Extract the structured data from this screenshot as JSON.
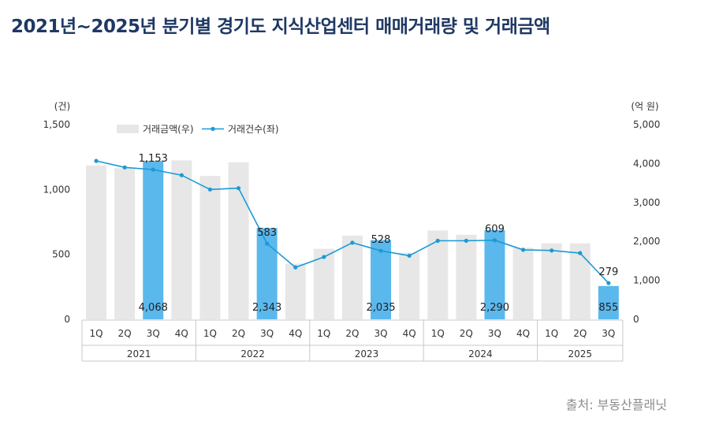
{
  "title": "2021년~2025년 분기별 경기도 지식산업센터 매매거래량 및 거래금액",
  "source": "출처: 부동산플래닛",
  "colors": {
    "title": "#1f3864",
    "bar_default": "#e7e7e7",
    "bar_highlight": "#5bb8ec",
    "line": "#1a9ad6",
    "axis_text": "#333333",
    "grid_border": "#c8c8c8"
  },
  "chart_data": {
    "type": "bar+line",
    "categories": [
      "1Q",
      "2Q",
      "3Q",
      "4Q",
      "1Q",
      "2Q",
      "3Q",
      "4Q",
      "1Q",
      "2Q",
      "3Q",
      "4Q",
      "1Q",
      "2Q",
      "3Q",
      "4Q",
      "1Q",
      "2Q",
      "3Q"
    ],
    "years": [
      {
        "label": "2021",
        "span": 4
      },
      {
        "label": "2022",
        "span": 4
      },
      {
        "label": "2023",
        "span": 4
      },
      {
        "label": "2024",
        "span": 4
      },
      {
        "label": "2025",
        "span": 3
      }
    ],
    "legend": {
      "bar": "거래금액(우)",
      "line": "거래건수(좌)"
    },
    "left_axis": {
      "unit_label": "(건)",
      "range": [
        0,
        1500
      ],
      "ticks": [
        "0",
        "500",
        "1,000",
        "1,500"
      ],
      "tick_values": [
        0,
        500,
        1000,
        1500
      ]
    },
    "right_axis": {
      "unit_label": "(억 원)",
      "range": [
        0,
        5000
      ],
      "ticks": [
        "0",
        "1,000",
        "2,000",
        "3,000",
        "4,000",
        "5,000"
      ],
      "tick_values": [
        0,
        1000,
        2000,
        3000,
        4000,
        5000
      ]
    },
    "series": [
      {
        "name": "거래금액(우)",
        "type": "bar",
        "axis": "right",
        "values": [
          3950,
          3880,
          4068,
          4080,
          3680,
          4030,
          2343,
          1430,
          1810,
          2150,
          2035,
          1710,
          2280,
          2170,
          2290,
          1840,
          1950,
          1950,
          855
        ],
        "highlight": [
          false,
          false,
          true,
          false,
          false,
          false,
          true,
          false,
          false,
          false,
          true,
          false,
          false,
          false,
          true,
          false,
          false,
          false,
          true
        ],
        "labels": [
          "",
          "",
          "4,068",
          "",
          "",
          "",
          "2,343",
          "",
          "",
          "",
          "2,035",
          "",
          "",
          "",
          "2,290",
          "",
          "",
          "",
          "855"
        ]
      },
      {
        "name": "거래건수(좌)",
        "type": "line",
        "axis": "left",
        "values": [
          1220,
          1170,
          1153,
          1110,
          1000,
          1010,
          583,
          400,
          480,
          590,
          528,
          490,
          605,
          605,
          609,
          535,
          530,
          510,
          279
        ],
        "labels": [
          "",
          "",
          "1,153",
          "",
          "",
          "",
          "583",
          "",
          "",
          "",
          "528",
          "",
          "",
          "",
          "609",
          "",
          "",
          "",
          "279"
        ]
      }
    ]
  }
}
